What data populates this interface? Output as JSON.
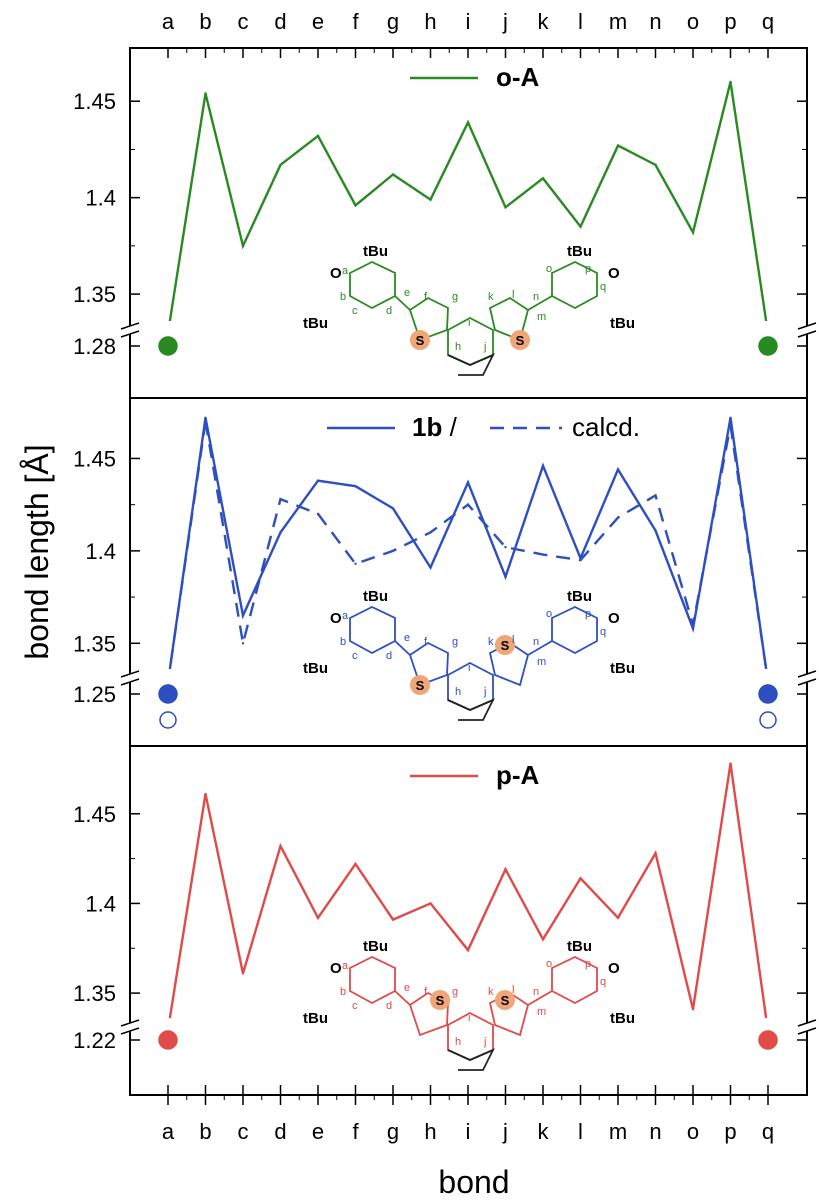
{
  "chart_data": {
    "type": "line",
    "xlabel": "bond",
    "ylabel": "bond length [Å]",
    "categories": [
      "a",
      "b",
      "c",
      "d",
      "e",
      "f",
      "g",
      "h",
      "i",
      "j",
      "k",
      "l",
      "m",
      "n",
      "o",
      "p",
      "q"
    ],
    "panels": [
      {
        "legend": [
          {
            "label": "o-A",
            "bold": true,
            "style": "solid"
          }
        ],
        "color": "#2a8a22",
        "yticks": [
          "1.45",
          "1.4",
          "1.35"
        ],
        "ybreak_label": "1.28",
        "ylim": [
          1.335,
          1.475
        ],
        "series": [
          {
            "name": "o-A",
            "style": "solid",
            "values": [
              1.28,
              1.454,
              1.375,
              1.417,
              1.432,
              1.396,
              1.412,
              1.399,
              1.439,
              1.395,
              1.41,
              1.385,
              1.427,
              1.417,
              1.382,
              1.46,
              1.278
            ]
          }
        ],
        "structure_labels": [
          "tBu",
          "tBu",
          "tBu",
          "tBu",
          "O",
          "O",
          "S",
          "S",
          "a",
          "b",
          "c",
          "d",
          "e",
          "f",
          "g",
          "h",
          "i",
          "j",
          "k",
          "l",
          "m",
          "n",
          "o",
          "p",
          "q"
        ]
      },
      {
        "legend": [
          {
            "label": "1b",
            "bold": true,
            "style": "solid"
          },
          {
            "label": " / ",
            "bold": false
          },
          {
            "label": "calcd.",
            "bold": false,
            "style": "dashed"
          }
        ],
        "color": "#2e4fc0",
        "yticks": [
          "1.45",
          "1.4",
          "1.35"
        ],
        "ybreak_label": "1.25",
        "ylim": [
          1.335,
          1.48
        ],
        "series": [
          {
            "name": "1b",
            "style": "solid",
            "values": [
              1.25,
              1.472,
              1.365,
              1.41,
              1.438,
              1.435,
              1.423,
              1.391,
              1.437,
              1.386,
              1.446,
              1.396,
              1.444,
              1.411,
              1.358,
              1.472,
              1.245
            ]
          },
          {
            "name": "calcd.",
            "style": "dashed",
            "values": [
              1.23,
              1.47,
              1.35,
              1.428,
              1.42,
              1.393,
              1.4,
              1.41,
              1.425,
              1.402,
              1.398,
              1.395,
              1.418,
              1.43,
              1.36,
              1.468,
              1.23
            ]
          }
        ],
        "structure_labels": [
          "tBu",
          "tBu",
          "tBu",
          "tBu",
          "O",
          "O",
          "S",
          "S",
          "a",
          "b",
          "c",
          "d",
          "e",
          "f",
          "g",
          "h",
          "i",
          "j",
          "k",
          "l",
          "m",
          "n",
          "o",
          "p",
          "q"
        ]
      },
      {
        "legend": [
          {
            "label": "p-A",
            "bold": true,
            "style": "solid"
          }
        ],
        "color": "#e04a48",
        "yticks": [
          "1.45",
          "1.4",
          "1.35"
        ],
        "ybreak_label": "1.22",
        "ylim": [
          1.335,
          1.485
        ],
        "series": [
          {
            "name": "p-A",
            "style": "solid",
            "values": [
              1.22,
              1.461,
              1.361,
              1.432,
              1.392,
              1.422,
              1.391,
              1.4,
              1.374,
              1.419,
              1.38,
              1.414,
              1.392,
              1.428,
              1.341,
              1.478,
              1.222
            ]
          }
        ],
        "structure_labels": [
          "tBu",
          "tBu",
          "tBu",
          "tBu",
          "O",
          "O",
          "S",
          "S",
          "a",
          "b",
          "c",
          "d",
          "e",
          "f",
          "g",
          "h",
          "i",
          "j",
          "k",
          "l",
          "m",
          "n",
          "o",
          "p",
          "q"
        ]
      }
    ]
  }
}
